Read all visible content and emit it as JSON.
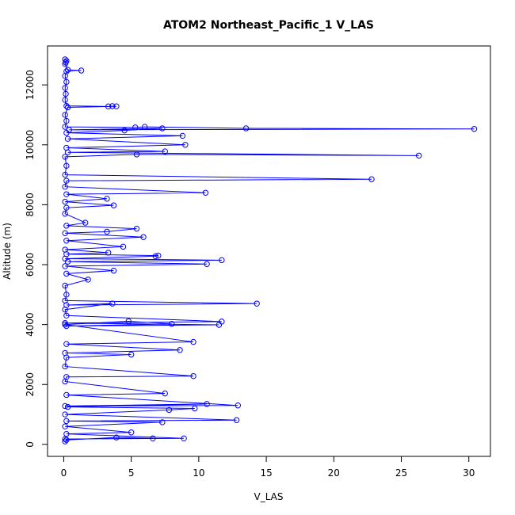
{
  "chart_data": {
    "type": "line",
    "title": "ATOM2 Northeast_Pacific_1 V_LAS",
    "xlabel": "V_LAS",
    "ylabel": "Altitude (m)",
    "xlim": [
      -1.2,
      31.6
    ],
    "ylim": [
      -400,
      13300
    ],
    "x_ticks": [
      0,
      5,
      10,
      15,
      20,
      25,
      30
    ],
    "y_ticks": [
      0,
      2000,
      4000,
      6000,
      8000,
      10000,
      12000
    ],
    "grid": false,
    "legend": "none",
    "series_color": "#0000ff",
    "marker": "open-circle",
    "series": [
      {
        "points": [
          [
            0.1,
            12850
          ],
          [
            0.2,
            12800
          ],
          [
            0.15,
            12750
          ],
          [
            0.1,
            12700
          ],
          [
            0.3,
            12500
          ],
          [
            1.3,
            12480
          ],
          [
            0.2,
            12450
          ],
          [
            0.1,
            12300
          ],
          [
            0.2,
            12100
          ],
          [
            0.1,
            11900
          ],
          [
            0.15,
            11700
          ],
          [
            0.1,
            11500
          ],
          [
            0.2,
            11300
          ],
          [
            3.3,
            11280
          ],
          [
            3.6,
            11290
          ],
          [
            3.9,
            11285
          ],
          [
            0.3,
            11250
          ],
          [
            0.1,
            11000
          ],
          [
            0.2,
            10800
          ],
          [
            0.1,
            10600
          ],
          [
            5.3,
            10580
          ],
          [
            6.0,
            10600
          ],
          [
            13.5,
            10550
          ],
          [
            30.4,
            10530
          ],
          [
            0.4,
            10500
          ],
          [
            7.3,
            10550
          ],
          [
            4.5,
            10480
          ],
          [
            0.2,
            10400
          ],
          [
            8.8,
            10300
          ],
          [
            0.3,
            10200
          ],
          [
            9.0,
            10000
          ],
          [
            0.2,
            9900
          ],
          [
            7.5,
            9780
          ],
          [
            0.3,
            9750
          ],
          [
            26.3,
            9640
          ],
          [
            5.4,
            9680
          ],
          [
            0.1,
            9600
          ],
          [
            0.2,
            9300
          ],
          [
            0.1,
            9000
          ],
          [
            22.8,
            8850
          ],
          [
            0.2,
            8800
          ],
          [
            0.1,
            8600
          ],
          [
            10.5,
            8400
          ],
          [
            0.2,
            8350
          ],
          [
            3.2,
            8200
          ],
          [
            0.1,
            8100
          ],
          [
            3.7,
            7980
          ],
          [
            0.2,
            7900
          ],
          [
            0.1,
            7700
          ],
          [
            1.6,
            7400
          ],
          [
            0.2,
            7300
          ],
          [
            5.4,
            7200
          ],
          [
            3.2,
            7100
          ],
          [
            0.1,
            7050
          ],
          [
            5.9,
            6920
          ],
          [
            0.2,
            6800
          ],
          [
            4.4,
            6600
          ],
          [
            0.1,
            6500
          ],
          [
            3.3,
            6400
          ],
          [
            0.2,
            6350
          ],
          [
            7.0,
            6300
          ],
          [
            6.8,
            6280
          ],
          [
            0.1,
            6200
          ],
          [
            11.7,
            6150
          ],
          [
            0.3,
            6100
          ],
          [
            10.6,
            6020
          ],
          [
            0.1,
            5950
          ],
          [
            3.7,
            5800
          ],
          [
            0.2,
            5700
          ],
          [
            1.8,
            5500
          ],
          [
            0.1,
            5300
          ],
          [
            0.2,
            5000
          ],
          [
            0.1,
            4800
          ],
          [
            14.3,
            4700
          ],
          [
            0.2,
            4650
          ],
          [
            3.6,
            4700
          ],
          [
            0.1,
            4500
          ],
          [
            0.2,
            4300
          ],
          [
            11.7,
            4100
          ],
          [
            0.1,
            4050
          ],
          [
            11.5,
            3990
          ],
          [
            0.2,
            3950
          ],
          [
            8.0,
            4020
          ],
          [
            4.8,
            4110
          ],
          [
            0.1,
            4000
          ],
          [
            9.6,
            3420
          ],
          [
            0.2,
            3350
          ],
          [
            8.6,
            3150
          ],
          [
            0.1,
            3050
          ],
          [
            5.0,
            3000
          ],
          [
            0.2,
            2900
          ],
          [
            0.1,
            2600
          ],
          [
            9.6,
            2280
          ],
          [
            0.2,
            2250
          ],
          [
            0.1,
            2100
          ],
          [
            7.5,
            1700
          ],
          [
            0.2,
            1650
          ],
          [
            12.9,
            1300
          ],
          [
            0.1,
            1280
          ],
          [
            10.6,
            1350
          ],
          [
            0.3,
            1250
          ],
          [
            9.7,
            1200
          ],
          [
            7.8,
            1150
          ],
          [
            0.1,
            1000
          ],
          [
            12.8,
            810
          ],
          [
            0.2,
            780
          ],
          [
            7.3,
            740
          ],
          [
            0.1,
            600
          ],
          [
            5.0,
            400
          ],
          [
            0.2,
            350
          ],
          [
            8.9,
            200
          ],
          [
            0.1,
            180
          ],
          [
            6.6,
            200
          ],
          [
            3.9,
            230
          ],
          [
            0.2,
            150
          ],
          [
            0.1,
            100
          ]
        ]
      }
    ]
  }
}
